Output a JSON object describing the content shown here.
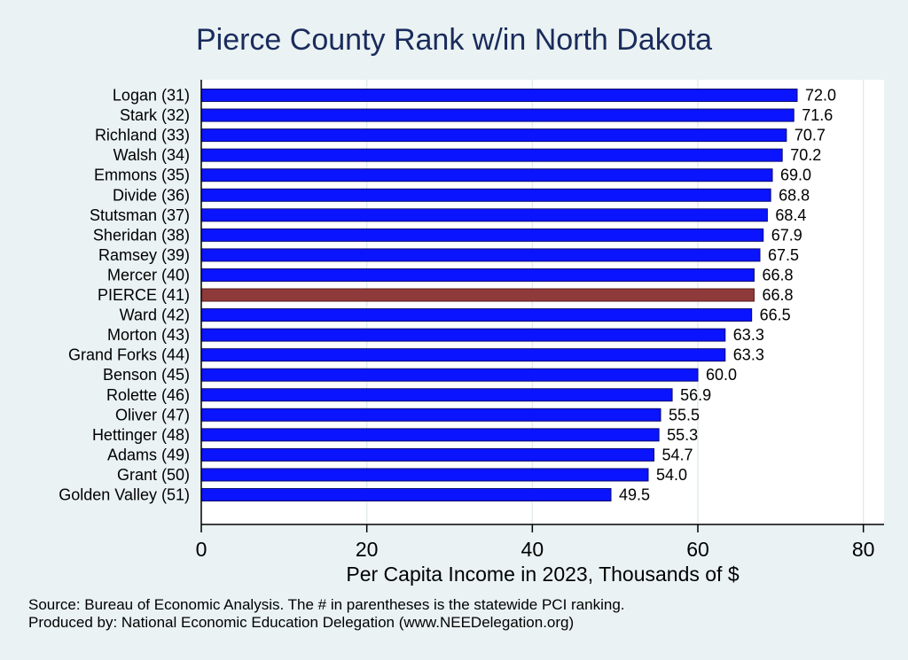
{
  "chart_data": {
    "type": "bar",
    "orientation": "horizontal",
    "title": "Pierce County Rank w/in North Dakota",
    "xlabel": "Per Capita Income in 2023, Thousands of $",
    "ylabel": "",
    "xlim": [
      0,
      82.5
    ],
    "xticks": [
      0,
      20,
      40,
      60,
      80
    ],
    "grid": true,
    "categories": [
      "Logan (31)",
      "Stark (32)",
      "Richland (33)",
      "Walsh (34)",
      "Emmons (35)",
      "Divide (36)",
      "Stutsman (37)",
      "Sheridan (38)",
      "Ramsey (39)",
      "Mercer (40)",
      "PIERCE (41)",
      "Ward (42)",
      "Morton (43)",
      "Grand Forks (44)",
      "Benson (45)",
      "Rolette (46)",
      "Oliver (47)",
      "Hettinger (48)",
      "Adams (49)",
      "Grant (50)",
      "Golden Valley (51)"
    ],
    "values": [
      72.0,
      71.6,
      70.7,
      70.2,
      69.0,
      68.8,
      68.4,
      67.9,
      67.5,
      66.8,
      66.8,
      66.5,
      63.3,
      63.3,
      60.0,
      56.9,
      55.5,
      55.3,
      54.7,
      54.0,
      49.5
    ],
    "value_labels": [
      "72.0",
      "71.6",
      "70.7",
      "70.2",
      "69.0",
      "68.8",
      "68.4",
      "67.9",
      "67.5",
      "66.8",
      "66.8",
      "66.5",
      "63.3",
      "63.3",
      "60.0",
      "56.9",
      "55.5",
      "55.3",
      "54.7",
      "54.0",
      "49.5"
    ],
    "highlight_category": "PIERCE (41)",
    "colors": {
      "bar": "#0a14ff",
      "bar_outline": "#0a0a6e",
      "highlight": "#8f3a3a",
      "highlight_outline": "#5a1a1a",
      "plot_background": "#ffffff",
      "page_background": "#eaf2f3",
      "grid": "#e2eced",
      "title": "#1a2b5c"
    }
  },
  "notes": {
    "source": "Source: Bureau of Economic Analysis. The # in parentheses is the statewide PCI ranking.",
    "producer": "Produced by: National Economic Education Delegation (www.NEEDelegation.org)"
  }
}
